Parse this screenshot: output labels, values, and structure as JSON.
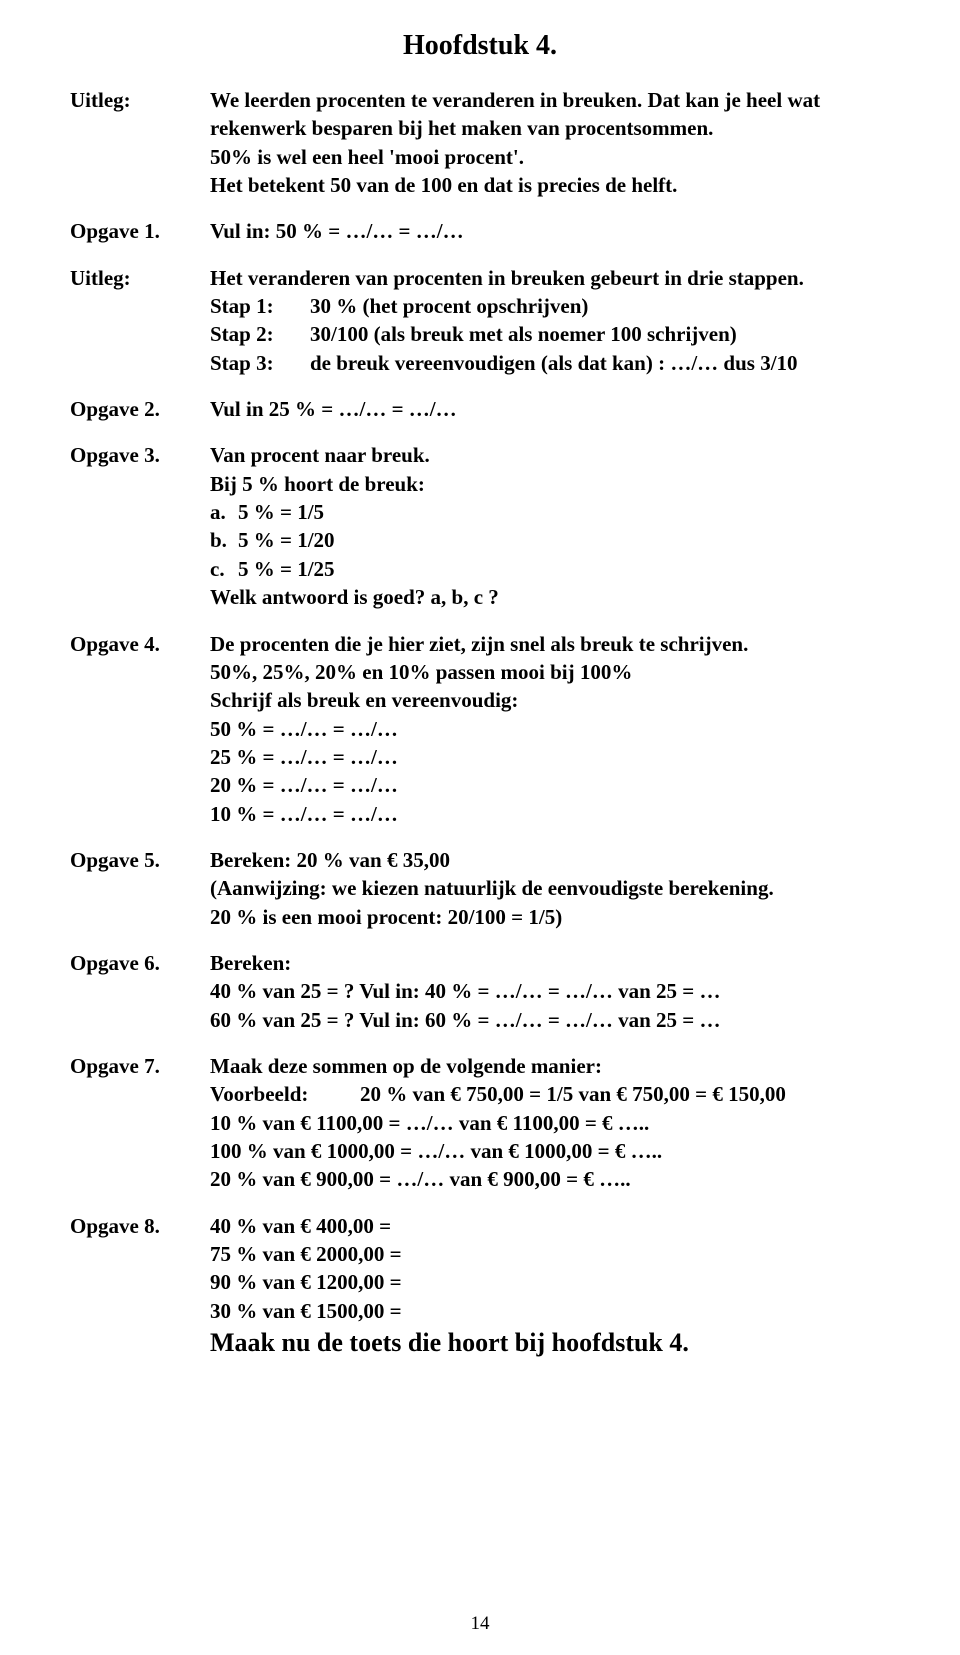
{
  "title": "Hoofdstuk 4.",
  "labels": {
    "uitleg": "Uitleg:",
    "opgave1": "Opgave 1.",
    "opgave2": "Opgave 2.",
    "opgave3": "Opgave 3.",
    "opgave4": "Opgave 4.",
    "opgave5": "Opgave 5.",
    "opgave6": "Opgave 6.",
    "opgave7": "Opgave 7.",
    "opgave8": "Opgave 8."
  },
  "intro": {
    "line1": "We leerden procenten te veranderen in breuken. Dat kan je heel wat",
    "line2": "rekenwerk besparen bij het maken van procentsommen.",
    "line3": "50% is wel een heel 'mooi procent'.",
    "line4": "Het betekent 50 van de 100 en dat is precies de helft."
  },
  "opgave1": {
    "text": "Vul in: 50 % = …/… = …/…"
  },
  "uitleg2": {
    "lead": "Het veranderen van procenten in breuken gebeurt in drie stappen.",
    "step1label": "Stap 1:",
    "step1text": "30 % (het procent opschrijven)",
    "step2label": "Stap 2:",
    "step2text": "30/100 (als breuk met als noemer 100 schrijven)",
    "step3label": "Stap 3:",
    "step3text": "de breuk vereenvoudigen (als dat kan) : …/… dus 3/10"
  },
  "opgave2": {
    "text": "Vul in 25 % = …/… = …/…"
  },
  "opgave3": {
    "line1": "Van procent naar breuk.",
    "line2": "Bij 5 % hoort de breuk:",
    "a_letter": "a.",
    "a_text": "5 % = 1/5",
    "b_letter": "b.",
    "b_text": "5 % = 1/20",
    "c_letter": "c.",
    "c_text": "5 % = 1/25",
    "question": "Welk antwoord is goed? a, b, c ?"
  },
  "opgave4": {
    "line1": "De procenten die je hier ziet, zijn snel als breuk te schrijven.",
    "line2": "50%, 25%, 20% en 10% passen mooi bij 100%",
    "line3": "Schrijf als breuk en vereenvoudig:",
    "eq1": "50 % = …/… = …/…",
    "eq2": "25 % = …/… = …/…",
    "eq3": "20 % = …/… = …/…",
    "eq4": "10 % = …/… = …/…"
  },
  "opgave5": {
    "line1": "Bereken: 20 % van € 35,00",
    "line2": "(Aanwijzing: we kiezen natuurlijk de eenvoudigste berekening.",
    "line3": "20 % is een mooi procent: 20/100 = 1/5)"
  },
  "opgave6": {
    "line1": "Bereken:",
    "line2": "40 % van 25 = ? Vul in:  40 % = …/… = …/… van 25 = …",
    "line3": "60 % van 25 = ?  Vul in: 60 % = …/… = …/… van 25 = …"
  },
  "opgave7": {
    "line1": "Maak deze sommen op de volgende manier:",
    "voorbeeld_label": "Voorbeeld:",
    "voorbeeld_text": "20 % van € 750,00 = 1/5 van € 750,00 = € 150,00",
    "eq1": "10 % van € 1100,00 = …/… van € 1100,00 = € …..",
    "eq2": "100 % van € 1000,00 = …/… van € 1000,00 = € …..",
    "eq3": "20 % van € 900,00 = …/… van € 900,00 = € ….."
  },
  "opgave8": {
    "eq1": "40 % van € 400,00 =",
    "eq2": "75 % van € 2000,00 =",
    "eq3": "90 % van € 1200,00 =",
    "eq4": "30 % van € 1500,00 =",
    "final": "Maak nu de toets die hoort bij hoofdstuk 4."
  },
  "pagenum": "14"
}
